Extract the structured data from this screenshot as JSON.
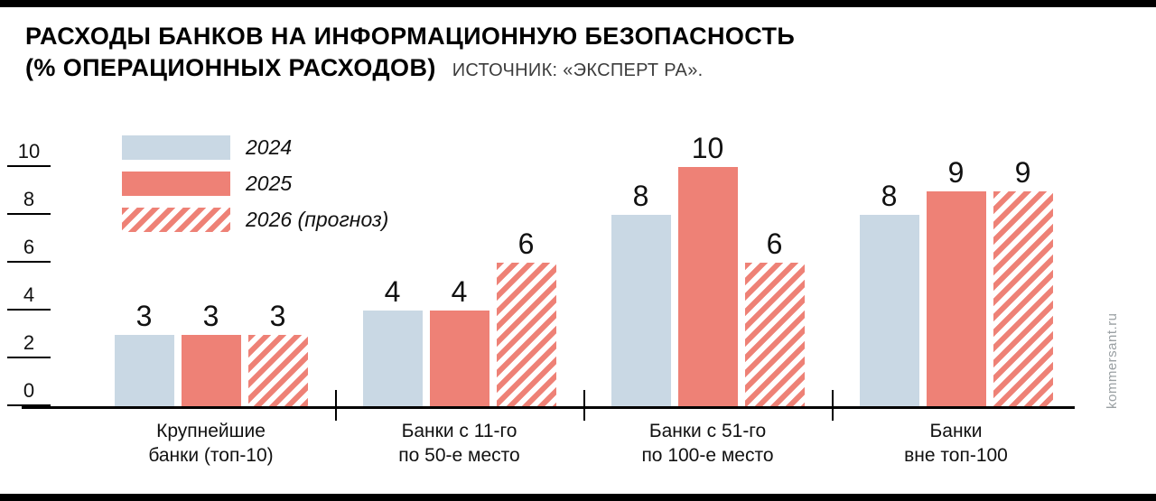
{
  "page": {
    "title_line1": "РАСХОДЫ БАНКОВ НА ИНФОРМАЦИОННУЮ БЕЗОПАСНОСТЬ",
    "title_line2": "(% ОПЕРАЦИОННЫХ РАСХОДОВ)",
    "source": "ИСТОЧНИК: «ЭКСПЕРТ РА».",
    "watermark": "kommersant.ru"
  },
  "chart_data": {
    "type": "bar",
    "title": "РАСХОДЫ БАНКОВ НА ИНФОРМАЦИОННУЮ БЕЗОПАСНОСТЬ (% ОПЕРАЦИОННЫХ РАСХОДОВ)",
    "source": "ИСТОЧНИК: «ЭКСПЕРТ РА».",
    "categories": [
      "Крупнейшие банки (топ-10)",
      "Банки с 11-го по 50-е место",
      "Банки с 51-го по 100-е место",
      "Банки вне топ-100"
    ],
    "categories_wrapped": [
      [
        "Крупнейшие",
        "банки (топ-10)"
      ],
      [
        "Банки с 11-го",
        "по 50-е место"
      ],
      [
        "Банки с 51-го",
        "по 100-е место"
      ],
      [
        "Банки",
        "вне топ-100"
      ]
    ],
    "series": [
      {
        "name": "2024",
        "values": [
          3,
          4,
          8,
          8
        ],
        "color": "#c9d8e4",
        "style": "solid"
      },
      {
        "name": "2025",
        "values": [
          3,
          4,
          10,
          9
        ],
        "color": "#ee8176",
        "style": "solid"
      },
      {
        "name": "2026 (прогноз)",
        "values": [
          3,
          6,
          6,
          9
        ],
        "color": "#ee8176",
        "style": "hatched"
      }
    ],
    "yticks": [
      0,
      2,
      4,
      6,
      8,
      10
    ],
    "ylim": [
      0,
      10
    ],
    "grid": false,
    "legend_position": "top-left",
    "xlabel": "",
    "ylabel": ""
  }
}
